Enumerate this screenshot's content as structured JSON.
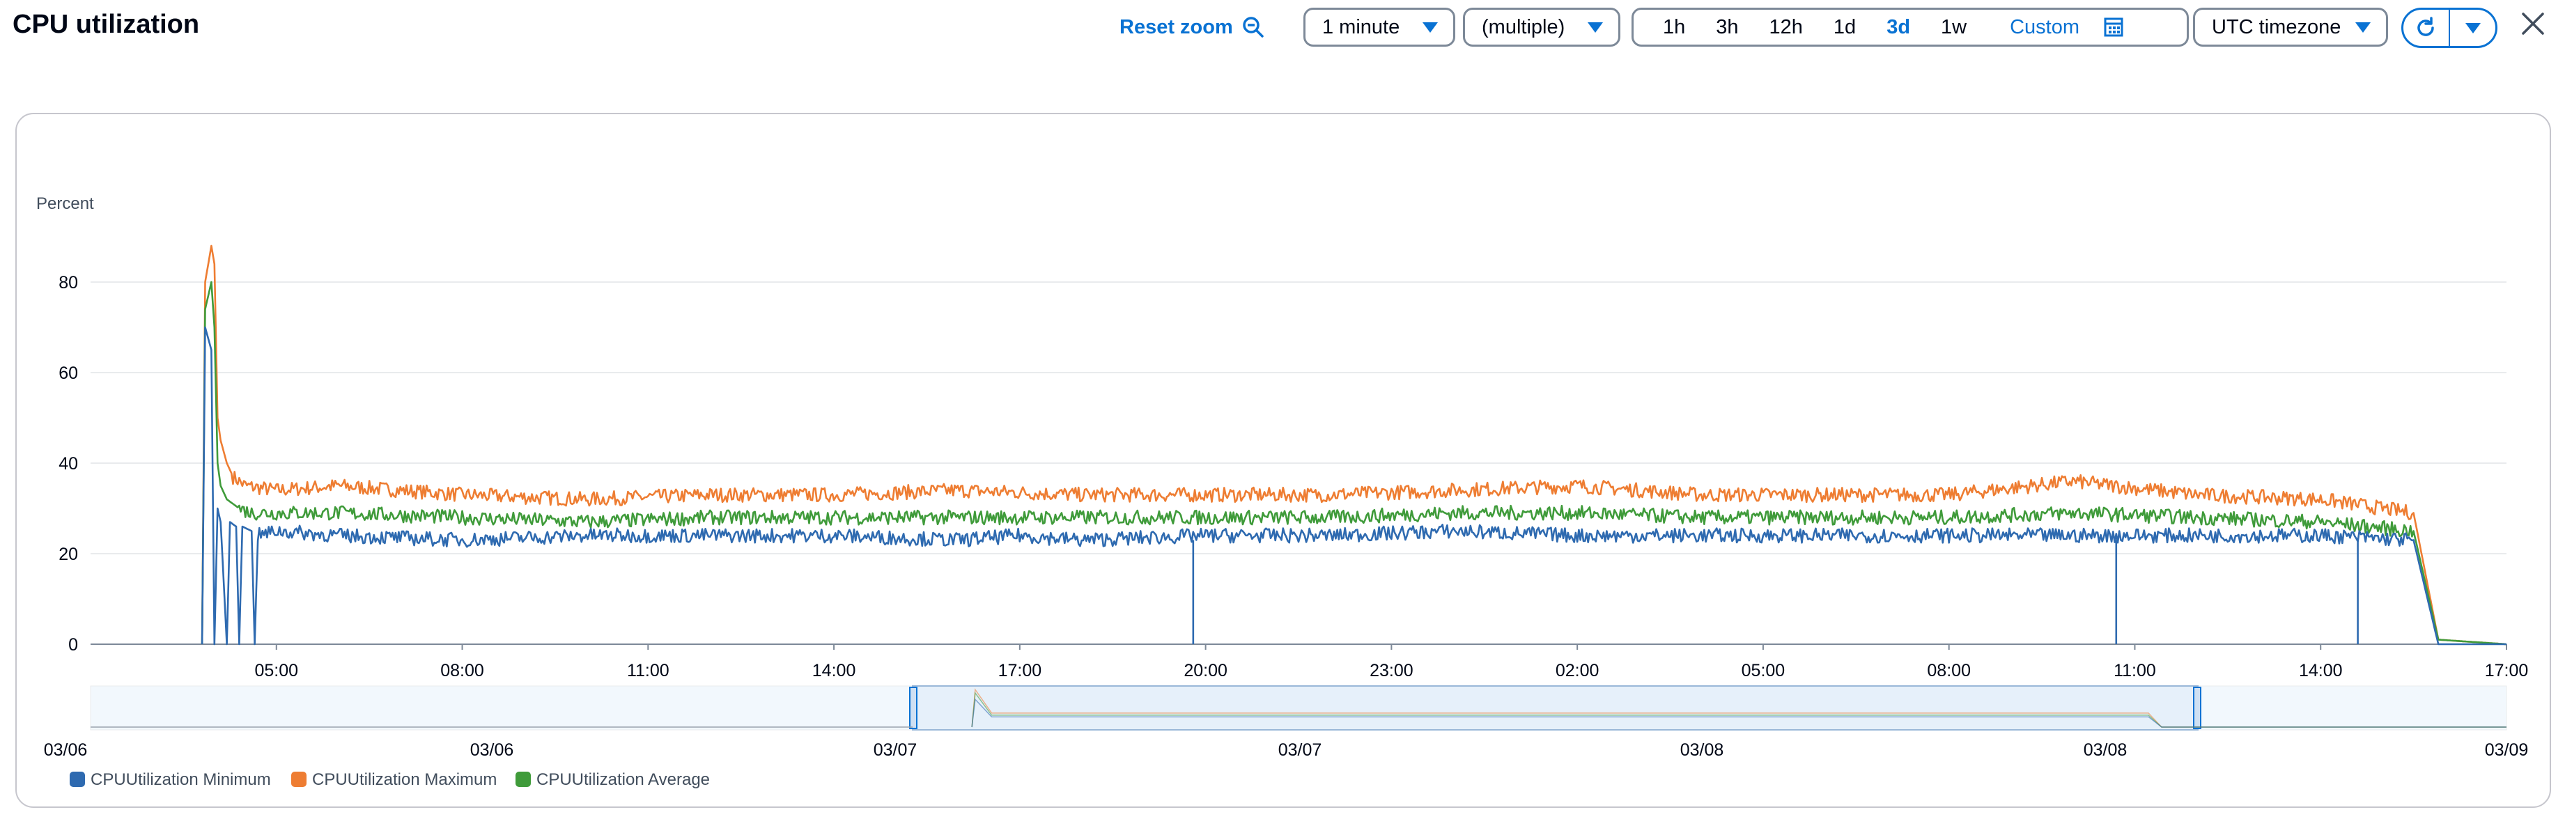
{
  "header": {
    "title": "CPU utilization",
    "reset_zoom_label": "Reset zoom",
    "period_value": "1 minute",
    "stat_value": "(multiple)",
    "ranges": [
      "1h",
      "3h",
      "12h",
      "1d",
      "3d",
      "1w"
    ],
    "active_range": "3d",
    "custom_label": "Custom",
    "timezone_value": "UTC timezone",
    "icons": {
      "reset_zoom": "zoom-out-icon",
      "custom": "calendar-icon",
      "refresh": "refresh-icon",
      "refresh_menu": "caret-down-icon",
      "close": "close-icon"
    }
  },
  "colors": {
    "accent": "#0972d3",
    "minimum": "#2e6ab0",
    "maximum": "#ee7d32",
    "average": "#3f9b3a"
  },
  "chart_data": {
    "type": "line",
    "ylabel": "Percent",
    "ylim": [
      0,
      90
    ],
    "yticks": [
      "0",
      "20",
      "40",
      "60",
      "80"
    ],
    "x_tick_labels": [
      "05:00",
      "08:00",
      "11:00",
      "14:00",
      "17:00",
      "20:00",
      "23:00",
      "02:00",
      "05:00",
      "08:00",
      "11:00",
      "14:00",
      "17:00"
    ],
    "x_units": "hours since 03/07 02:00 UTC",
    "xlim": [
      0,
      39
    ],
    "grid": true,
    "series": [
      {
        "name": "CPUUtilization Minimum",
        "color": "#2e6ab0",
        "points": [
          [
            1.8,
            0
          ],
          [
            1.85,
            70
          ],
          [
            1.95,
            65
          ],
          [
            2.0,
            0
          ],
          [
            2.05,
            30
          ],
          [
            2.1,
            27
          ],
          [
            2.2,
            0
          ],
          [
            2.25,
            27
          ],
          [
            2.35,
            26
          ],
          [
            2.4,
            0
          ],
          [
            2.45,
            26
          ],
          [
            2.6,
            25
          ],
          [
            2.65,
            0
          ],
          [
            2.7,
            24
          ],
          [
            3,
            25
          ],
          [
            4,
            24
          ],
          [
            6,
            23
          ],
          [
            8,
            24
          ],
          [
            10,
            24
          ],
          [
            12,
            24
          ],
          [
            14,
            23
          ],
          [
            15,
            24
          ],
          [
            16,
            23
          ],
          [
            18,
            24
          ],
          [
            20,
            24
          ],
          [
            22,
            25
          ],
          [
            24,
            24
          ],
          [
            26,
            24
          ],
          [
            28,
            24
          ],
          [
            30,
            24
          ],
          [
            32,
            24
          ],
          [
            34,
            24
          ],
          [
            36,
            24
          ],
          [
            37.5,
            23
          ],
          [
            37.9,
            0
          ],
          [
            39,
            0
          ]
        ]
      },
      {
        "name": "CPUUtilization Maximum",
        "color": "#ee7d32",
        "points": [
          [
            1.8,
            0
          ],
          [
            1.85,
            80
          ],
          [
            1.95,
            88
          ],
          [
            2.0,
            84
          ],
          [
            2.05,
            50
          ],
          [
            2.1,
            45
          ],
          [
            2.2,
            40
          ],
          [
            2.3,
            37
          ],
          [
            2.5,
            35
          ],
          [
            3,
            34
          ],
          [
            4,
            35
          ],
          [
            6,
            33
          ],
          [
            8,
            32
          ],
          [
            10,
            33
          ],
          [
            12,
            33
          ],
          [
            14,
            34
          ],
          [
            16,
            33
          ],
          [
            18,
            33
          ],
          [
            20,
            33
          ],
          [
            22,
            34
          ],
          [
            24,
            35
          ],
          [
            26,
            33
          ],
          [
            28,
            33
          ],
          [
            30,
            33
          ],
          [
            32,
            36
          ],
          [
            34,
            33
          ],
          [
            36,
            32
          ],
          [
            37.5,
            29
          ],
          [
            37.9,
            1
          ],
          [
            39,
            0
          ]
        ]
      },
      {
        "name": "CPUUtilization Average",
        "color": "#3f9b3a",
        "points": [
          [
            1.8,
            0
          ],
          [
            1.85,
            74
          ],
          [
            1.95,
            80
          ],
          [
            2.0,
            70
          ],
          [
            2.05,
            40
          ],
          [
            2.1,
            35
          ],
          [
            2.2,
            32
          ],
          [
            2.4,
            30
          ],
          [
            2.6,
            29
          ],
          [
            3,
            29
          ],
          [
            4,
            29
          ],
          [
            6,
            28
          ],
          [
            8,
            27
          ],
          [
            10,
            28
          ],
          [
            12,
            28
          ],
          [
            14,
            28
          ],
          [
            16,
            28
          ],
          [
            18,
            28
          ],
          [
            20,
            28
          ],
          [
            22,
            29
          ],
          [
            24,
            29
          ],
          [
            26,
            28
          ],
          [
            28,
            28
          ],
          [
            30,
            28
          ],
          [
            32,
            29
          ],
          [
            34,
            28
          ],
          [
            36,
            27
          ],
          [
            37.5,
            25
          ],
          [
            37.9,
            1
          ],
          [
            39,
            0
          ]
        ]
      }
    ],
    "overview_labels": [
      "03/06",
      "03/06",
      "03/07",
      "03/07",
      "03/08",
      "03/08",
      "03/09"
    ],
    "legend": [
      "CPUUtilization Minimum",
      "CPUUtilization Maximum",
      "CPUUtilization Average"
    ]
  }
}
